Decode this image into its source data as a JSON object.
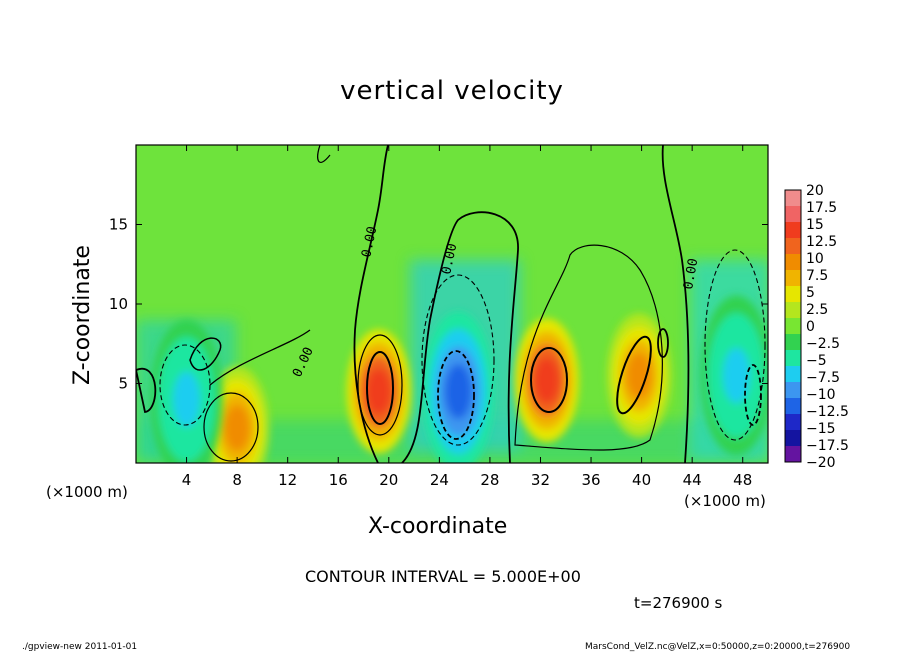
{
  "chart_data": {
    "type": "heatmap",
    "title": "vertical velocity",
    "xlabel": "X-coordinate",
    "ylabel": "Z-coordinate",
    "x_unit_label_left": "(×1000 m)",
    "x_unit_label_right": "(×1000 m)",
    "xlim": [
      0,
      50
    ],
    "ylim": [
      0,
      20
    ],
    "x_ticks": [
      "4",
      "8",
      "12",
      "16",
      "20",
      "24",
      "28",
      "32",
      "36",
      "40",
      "44",
      "48"
    ],
    "y_ticks": [
      "5",
      "10",
      "15"
    ],
    "colorbar": {
      "labels": [
        "20",
        "17.5",
        "15",
        "12.5",
        "10",
        "7.5",
        "5",
        "2.5",
        "0",
        "−2.5",
        "−5",
        "−7.5",
        "−10",
        "−12.5",
        "−15",
        "−17.5",
        "−20"
      ],
      "range": [
        -20,
        20
      ],
      "colors": [
        "#f08c8c",
        "#f06464",
        "#f03c1e",
        "#f0641e",
        "#f08c00",
        "#f0b400",
        "#e6e600",
        "#b4e61e",
        "#78e632",
        "#32d250",
        "#1ee6a0",
        "#1ecdf0",
        "#3c96f0",
        "#1e64e6",
        "#1e28c8",
        "#1414a0",
        "#6414a0"
      ]
    },
    "features": [
      {
        "type": "updraft",
        "x": 8,
        "z": 2.2,
        "peak": 10
      },
      {
        "type": "updraft",
        "x": 19.2,
        "z": 4.5,
        "peak": 15
      },
      {
        "type": "downdraft",
        "x": 25.5,
        "z": 4.5,
        "peak": -12.5
      },
      {
        "type": "updraft",
        "x": 32.5,
        "z": 5.2,
        "peak": 15
      },
      {
        "type": "updraft",
        "x": 39.8,
        "z": 5.5,
        "peak": 10
      },
      {
        "type": "downdraft",
        "x": 47.5,
        "z": 5.5,
        "peak": -7.5
      },
      {
        "type": "downdraft",
        "x": 4.0,
        "z": 4.0,
        "peak": -7.5
      }
    ],
    "contour_labels": [
      "0.00",
      "0.00",
      "0.00",
      "0.00"
    ]
  },
  "contour_interval_text": "CONTOUR INTERVAL = 5.000E+00",
  "time_text": "t=276900 s",
  "footer_left": "./gpview-new   2011-01-01",
  "footer_right": "MarsCond_VelZ.nc@VelZ,x=0:50000,z=0:20000,t=276900"
}
